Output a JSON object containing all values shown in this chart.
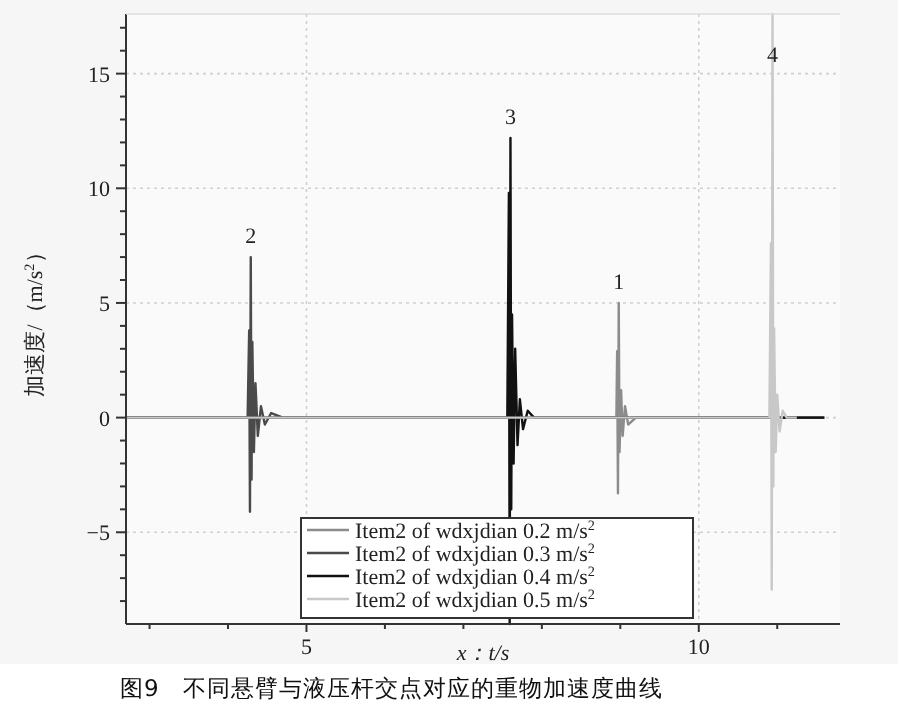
{
  "chart_data": {
    "type": "line",
    "xlabel": "x：t/s",
    "ylabel": "加速度/（m/s$^{2}$）",
    "annotations": [
      {
        "text": "2",
        "x": 4.29,
        "y": 7.0
      },
      {
        "text": "3",
        "x": 7.6,
        "y": 12.2
      },
      {
        "text": "1",
        "x": 8.98,
        "y": 5.0
      },
      {
        "text": "4",
        "x": 10.94,
        "y": 17.6
      },
      "图9　不同悬臂与液压杆交点对应的重物加速度曲线"
    ],
    "series": [
      {
        "name": "Item2 of wdxjdian 0.2 m/s$^{2}$",
        "color": "#8c8c8c",
        "x": [
          2.7,
          8.95,
          8.96,
          8.97,
          8.98,
          8.99,
          9.01,
          9.03,
          9.06,
          9.1,
          9.2,
          11.6
        ],
        "values": [
          0,
          0,
          2.9,
          -3.3,
          5.0,
          -1.5,
          1.2,
          -0.8,
          0.5,
          -0.3,
          0,
          0
        ]
      },
      {
        "name": "Item2 of wdxjdian 0.3 m/s$^{2}$",
        "color": "#4a4a4a",
        "x": [
          2.7,
          4.25,
          4.27,
          4.28,
          4.29,
          4.3,
          4.31,
          4.33,
          4.35,
          4.38,
          4.42,
          4.47,
          4.55,
          4.7,
          11.6
        ],
        "values": [
          0,
          0,
          3.8,
          -4.1,
          7.0,
          -2.7,
          3.3,
          -1.5,
          1.5,
          -0.8,
          0.5,
          -0.3,
          0.2,
          0,
          0
        ]
      },
      {
        "name": "Item2 of wdxjdian 0.4 m/s$^{2}$",
        "color": "#111111",
        "x": [
          2.7,
          7.56,
          7.58,
          7.59,
          7.6,
          7.61,
          7.62,
          7.64,
          7.66,
          7.69,
          7.72,
          7.76,
          7.82,
          7.9,
          11.6
        ],
        "values": [
          0,
          0,
          9.8,
          -9,
          12.2,
          -4,
          4.5,
          -2,
          3,
          -1.2,
          0.8,
          -0.5,
          0.3,
          0,
          0
        ]
      },
      {
        "name": "Item2 of wdxjdian 0.5 m/s$^{2}$",
        "color": "#c8c8c8",
        "x": [
          2.7,
          10.9,
          10.92,
          10.93,
          10.94,
          10.95,
          10.96,
          10.98,
          11.0,
          11.03,
          11.07,
          11.12,
          11.25
        ],
        "values": [
          0,
          0,
          7.6,
          -7.5,
          17.6,
          -3,
          3.9,
          -1.5,
          1,
          -0.6,
          0.3,
          0,
          0
        ]
      }
    ],
    "xlim": [
      2.7,
      11.8
    ],
    "xticks": [
      {
        "value": 3,
        "label": null
      },
      {
        "value": 4,
        "label": null
      },
      5,
      {
        "value": 6,
        "label": null
      },
      {
        "value": 7,
        "label": null
      },
      {
        "value": 8,
        "label": null
      },
      {
        "value": 9,
        "label": null
      },
      10,
      {
        "value": 11,
        "label": null
      }
    ],
    "ylim": [
      -9,
      17.6
    ],
    "yticks": [
      {
        "value": -8,
        "label": null
      },
      {
        "value": -7,
        "label": null
      },
      {
        "value": -6,
        "label": null
      },
      {
        "value": -5,
        "label": "−5"
      },
      {
        "value": -4,
        "label": null
      },
      {
        "value": -3,
        "label": null
      },
      {
        "value": -2,
        "label": null
      },
      {
        "value": -1,
        "label": null
      },
      0,
      {
        "value": 1,
        "label": null
      },
      {
        "value": 2,
        "label": null
      },
      {
        "value": 3,
        "label": null
      },
      {
        "value": 4,
        "label": null
      },
      5,
      {
        "value": 6,
        "label": null
      },
      {
        "value": 7,
        "label": null
      },
      {
        "value": 8,
        "label": null
      },
      {
        "value": 9,
        "label": null
      },
      10,
      {
        "value": 11,
        "label": null
      },
      {
        "value": 12,
        "label": null
      },
      {
        "value": 13,
        "label": null
      },
      {
        "value": 14,
        "label": null
      },
      15,
      {
        "value": 16,
        "label": null
      },
      {
        "value": 17,
        "label": null
      }
    ],
    "grid": true,
    "legend": "bottom",
    "marker": "none",
    "line_style": "solid"
  }
}
